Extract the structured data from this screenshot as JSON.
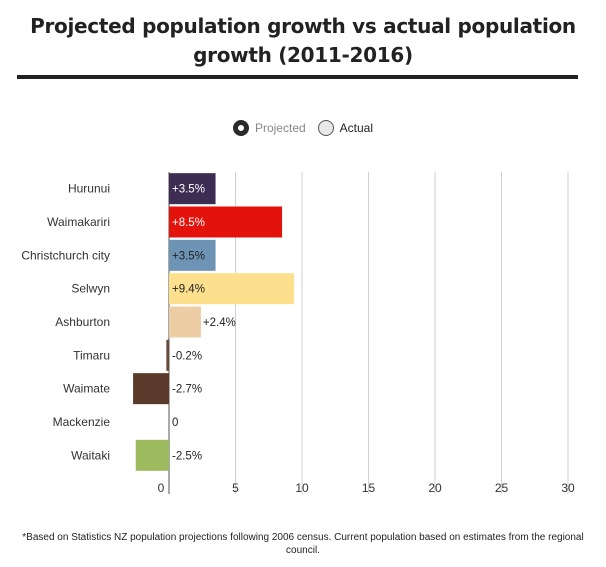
{
  "chart_data": {
    "type": "bar",
    "orientation": "horizontal",
    "title": "Projected population growth vs actual population growth (2011-2016)",
    "legend": {
      "position": "top-center",
      "items": [
        {
          "name": "Projected",
          "selected": true
        },
        {
          "name": "Actual",
          "selected": false
        }
      ]
    },
    "categories": [
      "Hurunui",
      "Waimakariri",
      "Christchurch city",
      "Selwyn",
      "Ashburton",
      "Timaru",
      "Waimate",
      "Mackenzie",
      "Waitaki"
    ],
    "values": [
      3.5,
      8.5,
      3.5,
      9.4,
      2.4,
      -0.2,
      -2.7,
      0,
      -2.5
    ],
    "value_labels": [
      "+3.5%",
      "+8.5%",
      "+3.5%",
      "+9.4%",
      "+2.4%",
      "-0.2%",
      "-2.7%",
      "0",
      "-2.5%"
    ],
    "colors": [
      "#3d2d52",
      "#e3120b",
      "#6d94b5",
      "#fde08e",
      "#eccda4",
      "#6b4a3a",
      "#5a3a2a",
      "#cccccc",
      "#9dbb5e"
    ],
    "xlim": [
      -3,
      30
    ],
    "xticks": [
      0,
      5,
      10,
      15,
      20,
      25,
      30
    ],
    "xlabel": "",
    "ylabel": "",
    "grid": true
  },
  "footnote": "*Based on Statistics NZ population projections following 2006 census. Current population based on estimates from the regional council."
}
